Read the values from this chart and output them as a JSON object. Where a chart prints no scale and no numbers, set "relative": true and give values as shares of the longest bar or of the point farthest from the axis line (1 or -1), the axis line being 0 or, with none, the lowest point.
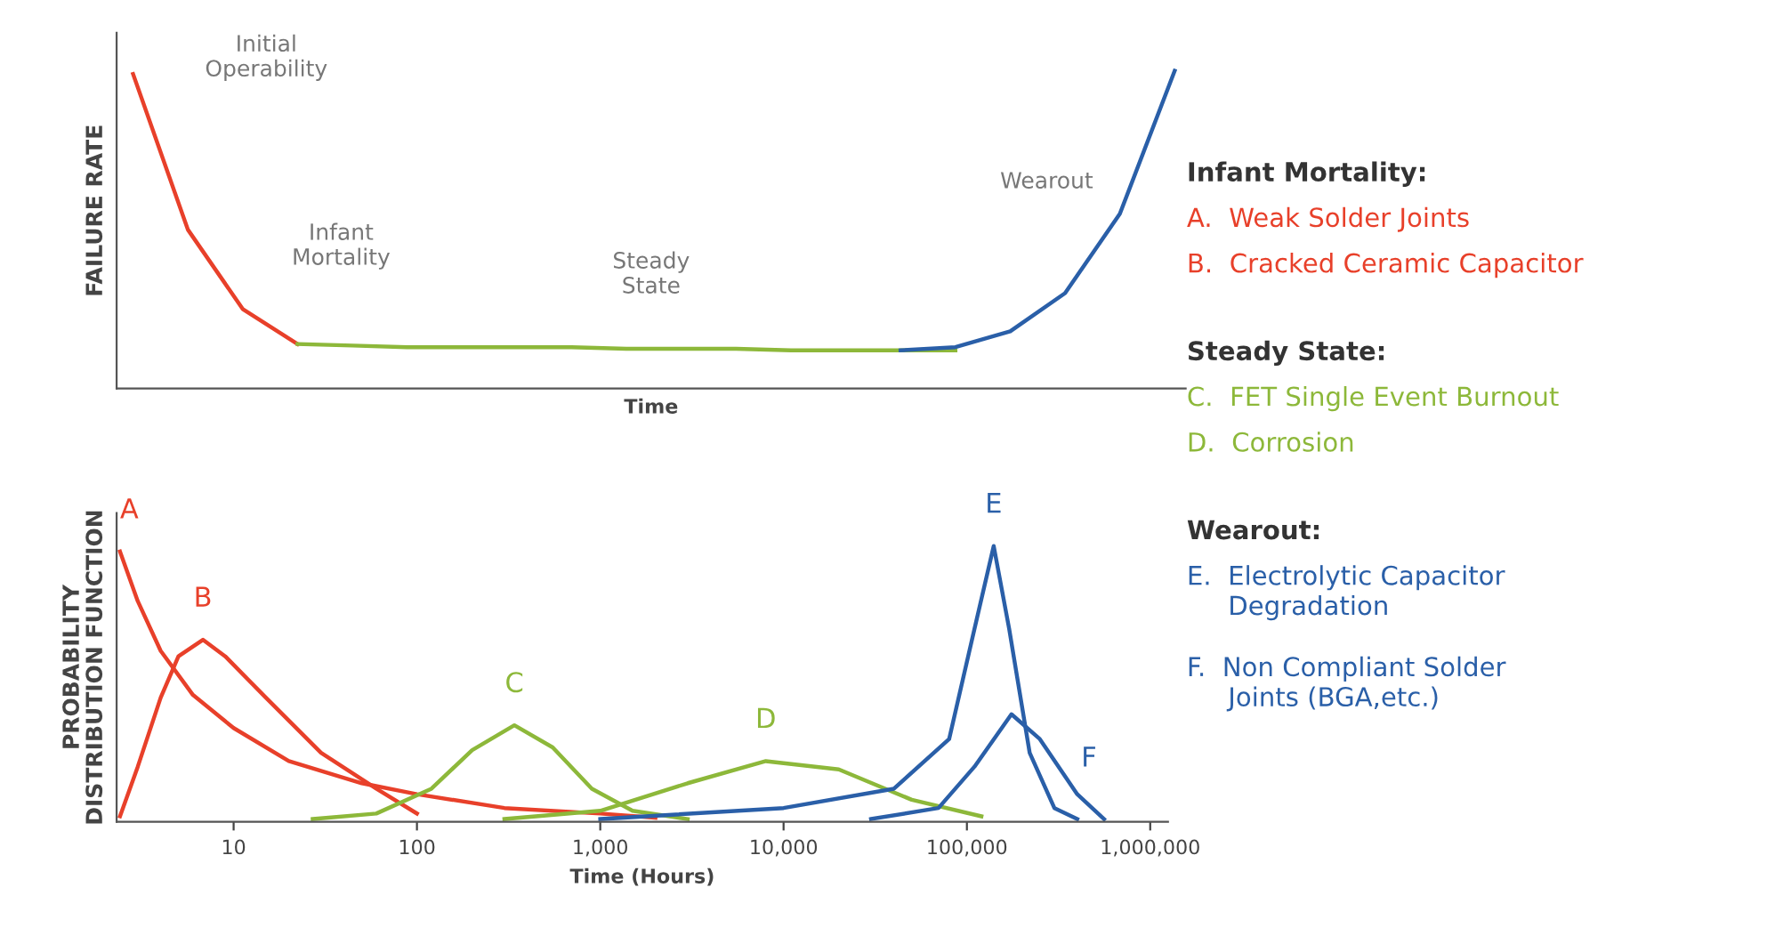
{
  "chart_data": [
    {
      "type": "line",
      "relative": true,
      "xlabel": "Time",
      "ylabel": "FAILURE RATE",
      "tick_labels": false,
      "legend": false,
      "grid": false,
      "marker": "none",
      "line_style": "solid",
      "categories": [
        null,
        null,
        null,
        null,
        null,
        null,
        null,
        null,
        null,
        null,
        null,
        null,
        null,
        null,
        null,
        null,
        null,
        null,
        null,
        null
      ],
      "series": [
        {
          "color": "#e8402a",
          "values": [
            0.99,
            0.5,
            0.25,
            0.14,
            null,
            null,
            null,
            null,
            null,
            null,
            null,
            null,
            null,
            null,
            null,
            null,
            null,
            null,
            null,
            null
          ]
        },
        {
          "color": "#8db83a",
          "values": [
            null,
            null,
            null,
            0.14,
            0.135,
            0.13,
            0.13,
            0.13,
            0.13,
            0.125,
            0.125,
            0.125,
            0.12,
            0.12,
            0.12,
            0.12,
            null,
            null,
            null,
            null
          ]
        },
        {
          "color": "#2a5fa8",
          "values": [
            null,
            null,
            null,
            null,
            null,
            null,
            null,
            null,
            null,
            null,
            null,
            null,
            null,
            null,
            0.12,
            0.13,
            0.18,
            0.3,
            0.55,
            1.0
          ]
        }
      ],
      "annotations": [
        "Initial\nOperability",
        "Infant\nMortality",
        "Steady\nState",
        "Wearout"
      ]
    },
    {
      "type": "line",
      "relative": true,
      "log": "x",
      "xlabel": "Time (Hours)",
      "ylabel": "PROBABILITY\nDISTRIBUTION FUNCTION",
      "xlim": [
        2.3,
        1250000
      ],
      "xticks": [
        10,
        100,
        {
          "value": 1000,
          "label": "1,000"
        },
        {
          "value": 10000,
          "label": "10,000"
        },
        {
          "value": 100000,
          "label": "100,000"
        },
        {
          "value": 1000000,
          "label": "1,000,000"
        }
      ],
      "tick_labels": "x",
      "legend": false,
      "grid": false,
      "marker": "none",
      "line_style": "solid",
      "series": [
        {
          "name": "A",
          "color": "#e8402a",
          "x": [
            2.4,
            3,
            4,
            6,
            10,
            20,
            50,
            100,
            300,
            1000,
            2000
          ],
          "values": [
            0.98,
            0.8,
            0.62,
            0.46,
            0.34,
            0.22,
            0.14,
            0.1,
            0.05,
            0.03,
            0.015
          ]
        },
        {
          "name": "B",
          "color": "#e8402a",
          "x": [
            2.4,
            3,
            4,
            5,
            6.8,
            9,
            15,
            30,
            60,
            100
          ],
          "values": [
            0.02,
            0.2,
            0.45,
            0.6,
            0.66,
            0.6,
            0.45,
            0.25,
            0.12,
            0.03
          ]
        },
        {
          "name": "C",
          "color": "#8db83a",
          "x": [
            27,
            60,
            120,
            200,
            340,
            550,
            900,
            1500,
            3000
          ],
          "values": [
            0.01,
            0.03,
            0.12,
            0.26,
            0.35,
            0.27,
            0.12,
            0.04,
            0.01
          ]
        },
        {
          "name": "D",
          "color": "#8db83a",
          "x": [
            300,
            1000,
            3000,
            8000,
            20000,
            50000,
            120000
          ],
          "values": [
            0.01,
            0.04,
            0.14,
            0.22,
            0.19,
            0.08,
            0.02
          ]
        },
        {
          "name": "E",
          "color": "#2a5fa8",
          "x": [
            1000,
            10000,
            40000,
            80000,
            110000,
            140000,
            170000,
            220000,
            300000,
            400000
          ],
          "values": [
            0.01,
            0.05,
            0.12,
            0.3,
            0.7,
            1.0,
            0.7,
            0.25,
            0.05,
            0.01
          ]
        },
        {
          "name": "F",
          "color": "#2a5fa8",
          "x": [
            30000,
            70000,
            110000,
            175000,
            250000,
            400000,
            560000
          ],
          "values": [
            0.01,
            0.05,
            0.2,
            0.39,
            0.3,
            0.1,
            0.01
          ]
        }
      ]
    },
    {
      "type": "other",
      "annotations": [
        "Infant Mortality:",
        "A.  Weak Solder Joints",
        "B.  Cracked Ceramic Capacitor",
        "Steady State:",
        "C.  FET Single Event Burnout",
        "D.  Corrosion",
        "Wearout:",
        "E.  Electrolytic Capacitor\n     Degradation",
        "F.  Non Compliant Solder\n     Joints (BGA,etc.)"
      ],
      "colors": [
        "#333333",
        "#e8402a",
        "#e8402a",
        "#333333",
        "#8db83a",
        "#8db83a",
        "#333333",
        "#2a5fa8",
        "#2a5fa8"
      ]
    }
  ]
}
